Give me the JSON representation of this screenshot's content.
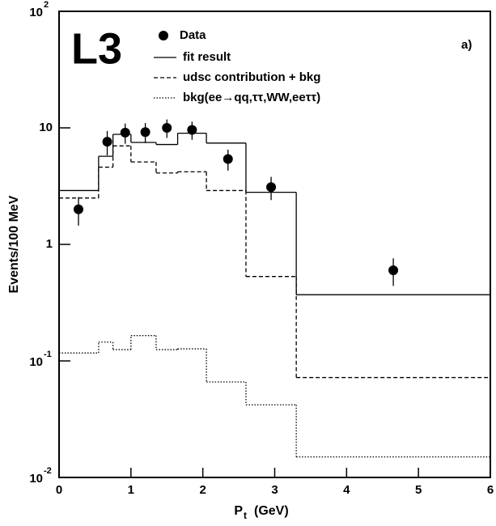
{
  "chart_data": {
    "type": "histogram",
    "annotation": "L3",
    "panel_label": "a)",
    "ylabel": "Events/100 MeV",
    "xlabel": {
      "main": "P",
      "sub": "t",
      "unit": "(GeV)"
    },
    "xlim": [
      0,
      6
    ],
    "xticks": [
      0,
      1,
      2,
      3,
      4,
      5,
      6
    ],
    "ylim": [
      0.01,
      100
    ],
    "log_y": true,
    "yticks": [
      {
        "value": 0.01,
        "label": "10",
        "exponent": "-2"
      },
      {
        "value": 0.1,
        "label": "10",
        "exponent": "-1"
      },
      1,
      10,
      {
        "value": 100,
        "label": "10",
        "exponent": "2"
      }
    ],
    "bins": [
      0,
      0.55,
      0.75,
      1.0,
      1.35,
      1.65,
      2.05,
      2.6,
      3.3,
      6
    ],
    "points": {
      "name": "Data",
      "color": "#000000",
      "x": [
        0.27,
        0.67,
        0.92,
        1.2,
        1.5,
        1.85,
        2.35,
        2.95,
        4.65
      ],
      "values": [
        2.0,
        7.6,
        9.1,
        9.2,
        10,
        9.6,
        5.4,
        3.1,
        0.6
      ],
      "errors": [
        0.55,
        1.8,
        1.8,
        1.8,
        1.8,
        1.7,
        1.1,
        0.7,
        0.16
      ]
    },
    "series": [
      {
        "name": "fit result",
        "color": "#000000",
        "dash": "none",
        "values": [
          2.9,
          5.7,
          8.8,
          7.5,
          7.2,
          9.0,
          7.4,
          2.8,
          0.37
        ]
      },
      {
        "name": "udsc contribution + bkg",
        "color": "#000000",
        "dash": "5,3",
        "values": [
          2.5,
          4.6,
          7.0,
          5.1,
          4.1,
          4.2,
          2.9,
          0.53,
          0.072
        ]
      },
      {
        "name": "bkg(ee→qq,ττ,WW,eeττ)",
        "color": "#000000",
        "dash": "1.5,2",
        "values": [
          0.117,
          0.145,
          0.125,
          0.165,
          0.125,
          0.127,
          0.066,
          0.042,
          0.015
        ]
      }
    ]
  }
}
